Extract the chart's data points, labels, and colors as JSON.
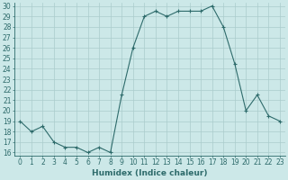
{
  "x": [
    0,
    1,
    2,
    3,
    4,
    5,
    6,
    7,
    8,
    9,
    10,
    11,
    12,
    13,
    14,
    15,
    16,
    17,
    18,
    19,
    20,
    21,
    22,
    23
  ],
  "y": [
    19,
    18,
    18.5,
    17,
    16.5,
    16.5,
    16,
    16.5,
    16,
    21.5,
    26,
    29,
    29.5,
    29,
    29.5,
    29.5,
    29.5,
    30,
    28,
    24.5,
    20,
    21.5,
    19.5,
    19
  ],
  "xlabel": "Humidex (Indice chaleur)",
  "ylim_min": 16,
  "ylim_max": 30,
  "xlim_min": -0.5,
  "xlim_max": 23.5,
  "yticks": [
    16,
    17,
    18,
    19,
    20,
    21,
    22,
    23,
    24,
    25,
    26,
    27,
    28,
    29,
    30
  ],
  "xticks": [
    0,
    1,
    2,
    3,
    4,
    5,
    6,
    7,
    8,
    9,
    10,
    11,
    12,
    13,
    14,
    15,
    16,
    17,
    18,
    19,
    20,
    21,
    22,
    23
  ],
  "line_color": "#2e6b6b",
  "marker": "P",
  "marker_size": 2.0,
  "bg_color": "#cce8e8",
  "grid_color": "#b0cccc",
  "tick_fontsize": 5.5,
  "label_fontsize": 6.5
}
